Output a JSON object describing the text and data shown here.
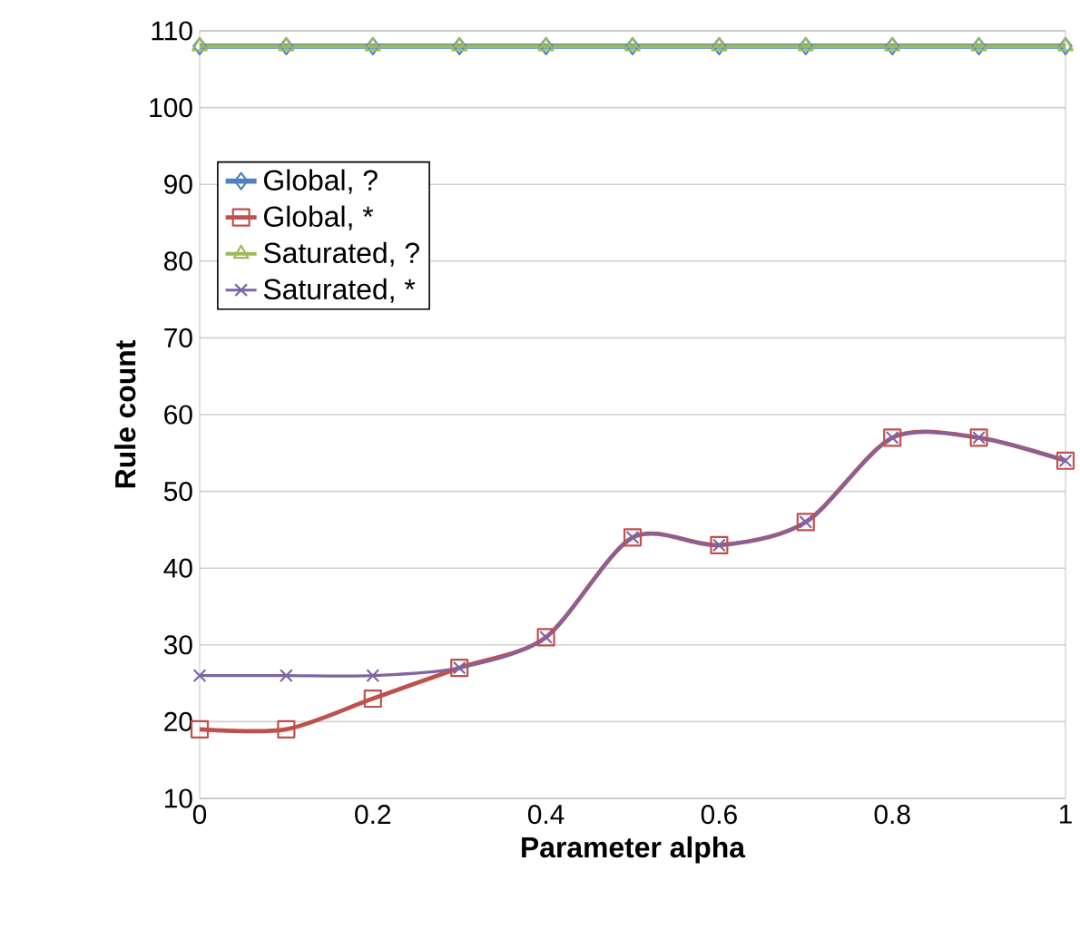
{
  "chart_data": {
    "type": "line",
    "xlabel": "Parameter alpha",
    "ylabel": "Rule count",
    "x": [
      0,
      0.1,
      0.2,
      0.3,
      0.4,
      0.5,
      0.6,
      0.7,
      0.8,
      0.9,
      1
    ],
    "series": [
      {
        "name": "Global, ?",
        "color": "#4f81bd",
        "marker": "diamond",
        "values": [
          108,
          108,
          108,
          108,
          108,
          108,
          108,
          108,
          108,
          108,
          108
        ]
      },
      {
        "name": "Global, *",
        "color": "#c0504d",
        "marker": "square",
        "values": [
          19,
          19,
          23,
          27,
          31,
          44,
          43,
          46,
          57,
          57,
          54
        ]
      },
      {
        "name": "Saturated, ?",
        "color": "#9bbb59",
        "marker": "triangle",
        "values": [
          108,
          108,
          108,
          108,
          108,
          108,
          108,
          108,
          108,
          108,
          108
        ]
      },
      {
        "name": "Saturated, *",
        "color": "#8064a2",
        "marker": "cross",
        "values": [
          26,
          26,
          26,
          27,
          31,
          44,
          43,
          46,
          57,
          57,
          54
        ]
      }
    ],
    "xlim": [
      0,
      1
    ],
    "xticks": [
      0,
      0.2,
      0.4,
      0.6,
      0.8,
      1
    ],
    "ylim": [
      10,
      110
    ],
    "yticks": [
      10,
      20,
      30,
      40,
      50,
      60,
      70,
      80,
      90,
      100,
      110
    ],
    "grid": "y",
    "legend": "top left",
    "line_style": "solid"
  }
}
